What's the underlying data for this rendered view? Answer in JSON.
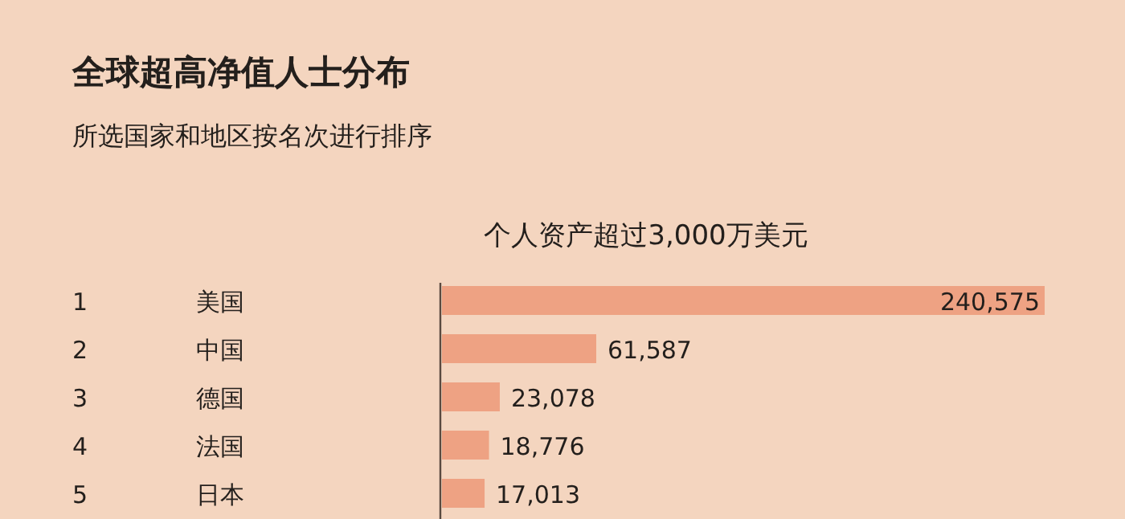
{
  "chart_data": {
    "type": "bar",
    "orientation": "horizontal",
    "title": "全球超高净值人士分布",
    "subtitle": "所选国家和地区按名次进行排序",
    "xlabel": "个人资产超过3,000万美元",
    "categories": [
      "美国",
      "中国",
      "德国",
      "法国",
      "日本"
    ],
    "values": [
      240575,
      61587,
      23078,
      18776,
      17013
    ],
    "value_labels": [
      "240,575",
      "61,587",
      "23,078",
      "18,776",
      "17,013"
    ],
    "color": "#eea283",
    "annotations": [
      "1",
      "2",
      "3",
      "4",
      "5"
    ]
  }
}
